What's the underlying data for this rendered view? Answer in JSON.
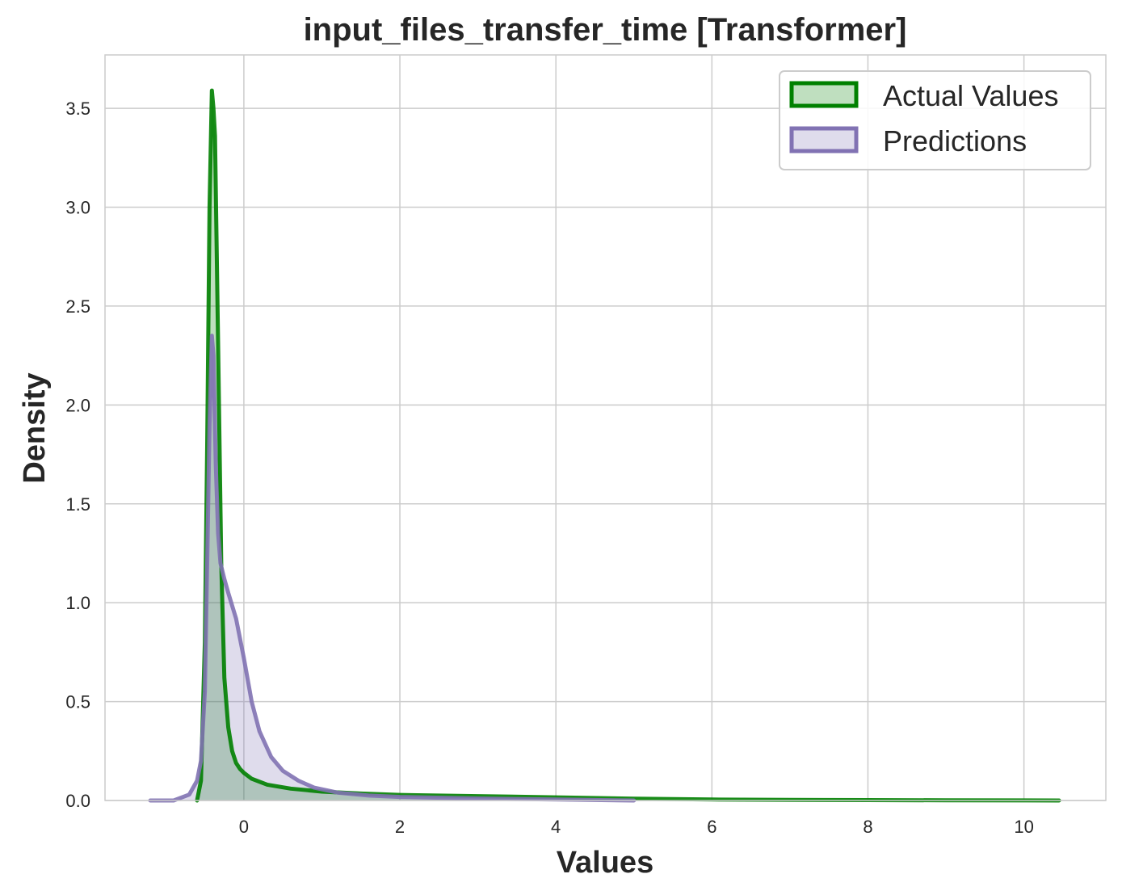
{
  "chart_data": {
    "type": "area",
    "title": "input_files_transfer_time [Transformer]",
    "xlabel": "Values",
    "ylabel": "Density",
    "xlim": [
      -1.78,
      11.05
    ],
    "ylim": [
      0,
      3.77
    ],
    "x_ticks": [
      0,
      2,
      4,
      6,
      8,
      10
    ],
    "x_tick_labels": [
      "0",
      "2",
      "4",
      "6",
      "8",
      "10"
    ],
    "y_ticks": [
      0.0,
      0.5,
      1.0,
      1.5,
      2.0,
      2.5,
      3.0,
      3.5
    ],
    "y_tick_labels": [
      "0.0",
      "0.5",
      "1.0",
      "1.5",
      "2.0",
      "2.5",
      "3.0",
      "3.5"
    ],
    "grid": true,
    "legend_position": "top-right",
    "series": [
      {
        "name": "Actual Values",
        "color": "#008000",
        "fill": "#bfe0bf",
        "x": [
          -0.6,
          -0.55,
          -0.5,
          -0.47,
          -0.44,
          -0.41,
          -0.39,
          -0.37,
          -0.33,
          -0.29,
          -0.25,
          -0.2,
          -0.15,
          -0.1,
          -0.05,
          0.0,
          0.1,
          0.3,
          0.6,
          1.0,
          1.5,
          2.0,
          3.0,
          4.0,
          5.0,
          6.0,
          7.0,
          8.0,
          9.0,
          10.0,
          10.45
        ],
        "y": [
          0.0,
          0.1,
          0.8,
          1.8,
          3.0,
          3.59,
          3.5,
          3.36,
          2.3,
          1.2,
          0.62,
          0.37,
          0.25,
          0.19,
          0.16,
          0.14,
          0.11,
          0.08,
          0.06,
          0.045,
          0.035,
          0.028,
          0.022,
          0.016,
          0.009,
          0.005,
          0.003,
          0.002,
          0.001,
          0.0005,
          0.0
        ]
      },
      {
        "name": "Predictions",
        "color": "#8172b3",
        "fill": "#dcd7ea",
        "x": [
          -1.2,
          -0.9,
          -0.7,
          -0.6,
          -0.55,
          -0.5,
          -0.47,
          -0.44,
          -0.41,
          -0.39,
          -0.36,
          -0.33,
          -0.3,
          -0.25,
          -0.2,
          -0.1,
          0.0,
          0.1,
          0.2,
          0.35,
          0.5,
          0.7,
          0.9,
          1.2,
          1.6,
          2.0,
          3.0,
          4.0,
          5.0
        ],
        "y": [
          0.0,
          0.0,
          0.03,
          0.1,
          0.2,
          0.55,
          1.2,
          1.9,
          2.35,
          2.25,
          1.7,
          1.35,
          1.2,
          1.12,
          1.05,
          0.92,
          0.72,
          0.5,
          0.35,
          0.22,
          0.15,
          0.1,
          0.065,
          0.04,
          0.025,
          0.018,
          0.01,
          0.005,
          0.0
        ]
      }
    ]
  }
}
